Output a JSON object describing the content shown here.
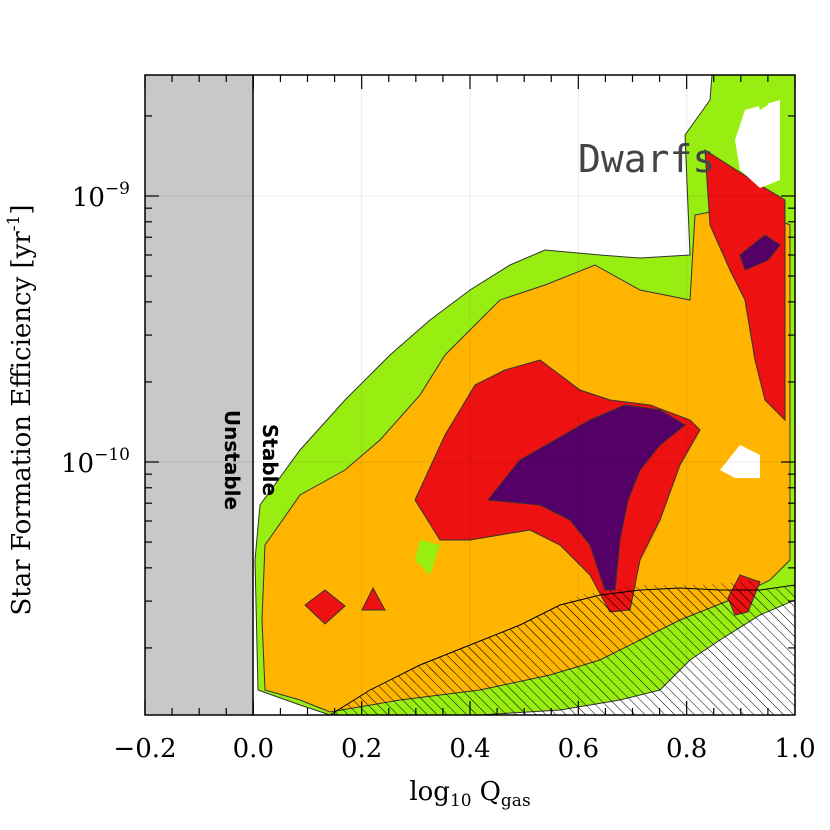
{
  "chart_data": {
    "type": "contour",
    "title": "",
    "panel_label": "Dwarfs",
    "xlabel": {
      "base": "log",
      "base_sub": "10",
      "var": "Q",
      "var_sub": "gas"
    },
    "ylabel": {
      "text": "Star Formation Efficiency [yr",
      "sup": "-1",
      "close": "]"
    },
    "xlim": [
      -0.2,
      1.0
    ],
    "ylim": [
      1.5e-11,
      3e-09
    ],
    "yscale": "log",
    "x_ticks": [
      {
        "value": -0.2,
        "label": "−0.2"
      },
      {
        "value": 0.0,
        "label": "0.0"
      },
      {
        "value": 0.2,
        "label": "0.2"
      },
      {
        "value": 0.4,
        "label": "0.4"
      },
      {
        "value": 0.6,
        "label": "0.6"
      },
      {
        "value": 0.8,
        "label": "0.8"
      },
      {
        "value": 1.0,
        "label": "1.0"
      }
    ],
    "y_ticks": [
      {
        "value": 1e-10,
        "base": "10",
        "exp": "−10"
      },
      {
        "value": 1e-09,
        "base": "10",
        "exp": "−9"
      }
    ],
    "unstable_region": {
      "x_range": [
        -0.2,
        0.0
      ],
      "label_left": "Unstable",
      "label_right": "Stable"
    },
    "levels": [
      {
        "name": "level-1",
        "color": "#99ee11"
      },
      {
        "name": "level-2",
        "color": "#ffb400"
      },
      {
        "name": "level-3",
        "color": "#ee1111"
      },
      {
        "name": "level-4",
        "color": "#550066"
      }
    ],
    "hatched_region": "lower-right"
  }
}
